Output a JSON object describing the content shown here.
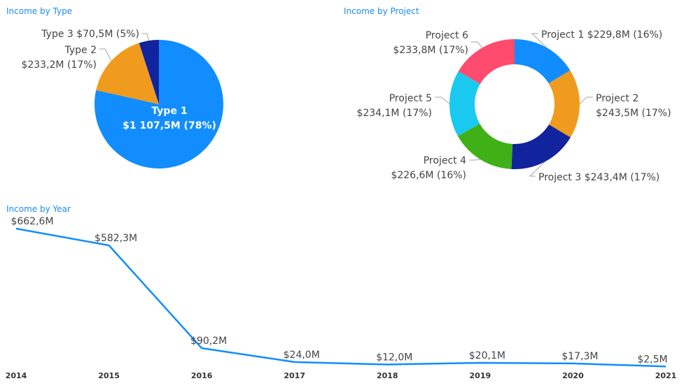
{
  "chart_data": [
    {
      "type": "pie",
      "title": "Income by Type",
      "series": [
        {
          "name": "Type 1",
          "value": 1107.5,
          "value_label": "$1 107,5M",
          "pct_label": "(78%)",
          "color": "#118DFF"
        },
        {
          "name": "Type 2",
          "value": 233.2,
          "value_label": "$233,2M",
          "pct_label": "(17%)",
          "color": "#F09B1D"
        },
        {
          "name": "Type 3",
          "value": 70.5,
          "value_label": "$70,5M",
          "pct_label": "(5%)",
          "color": "#12239E"
        }
      ]
    },
    {
      "type": "pie",
      "subtype": "donut",
      "title": "Income by Project",
      "series": [
        {
          "name": "Project 1",
          "value": 229.8,
          "value_label": "$229,8M",
          "pct_label": "(16%)",
          "color": "#118DFF"
        },
        {
          "name": "Project 2",
          "value": 243.5,
          "value_label": "$243,5M",
          "pct_label": "(17%)",
          "color": "#F09B1D"
        },
        {
          "name": "Project 3",
          "value": 243.4,
          "value_label": "$243,4M",
          "pct_label": "(17%)",
          "color": "#12239E"
        },
        {
          "name": "Project 4",
          "value": 226.6,
          "value_label": "$226,6M",
          "pct_label": "(16%)",
          "color": "#3FB116"
        },
        {
          "name": "Project 5",
          "value": 234.1,
          "value_label": "$234,1M",
          "pct_label": "(17%)",
          "color": "#1AC9F0"
        },
        {
          "name": "Project 6",
          "value": 233.8,
          "value_label": "$233,8M",
          "pct_label": "(17%)",
          "color": "#FF4B6E"
        }
      ]
    },
    {
      "type": "line",
      "title": "Income by Year",
      "categories": [
        "2014",
        "2015",
        "2016",
        "2017",
        "2018",
        "2019",
        "2020",
        "2021"
      ],
      "values": [
        662.6,
        582.3,
        90.2,
        24.0,
        12.0,
        20.1,
        17.3,
        2.5
      ],
      "value_labels": [
        "$662,6M",
        "$582,3M",
        "$90,2M",
        "$24,0M",
        "$12,0M",
        "$20,1M",
        "$17,3M",
        "$2,5M"
      ],
      "color": "#118DFF"
    }
  ]
}
